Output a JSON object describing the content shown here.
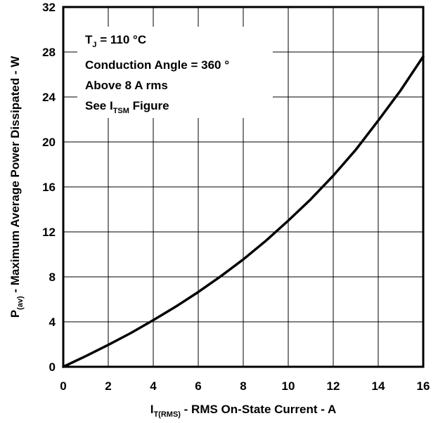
{
  "chart_data": {
    "type": "line",
    "xlabel": {
      "main": "I",
      "sub": "T(RMS)",
      "rest": " - RMS On-State Current - A"
    },
    "ylabel": {
      "main": "P",
      "sub": "(av)",
      "rest": " - Maximum Average Power Dissipated - W"
    },
    "xlim": [
      0,
      16
    ],
    "ylim": [
      0,
      32
    ],
    "xticks": [
      "0",
      "2",
      "4",
      "6",
      "8",
      "10",
      "12",
      "14",
      "16"
    ],
    "yticks": [
      "0",
      "4",
      "8",
      "12",
      "16",
      "20",
      "24",
      "28",
      "32"
    ],
    "grid": true,
    "annotations": {
      "line1": {
        "main": "T",
        "sub": "J",
        "rest": " = 110 °C"
      },
      "line2": "Conduction Angle = 360 °",
      "line3": "Above 8 A rms",
      "line4": {
        "pre": "See I",
        "sub": "TSM",
        "rest": " Figure"
      }
    },
    "series": [
      {
        "x": [
          0,
          1,
          2,
          3,
          4,
          5,
          6,
          7,
          8,
          9,
          10,
          11,
          12,
          13,
          14,
          15,
          16
        ],
        "values": [
          0,
          0.95,
          1.95,
          3.0,
          4.15,
          5.35,
          6.65,
          8.05,
          9.55,
          11.2,
          13.0,
          14.9,
          17.0,
          19.3,
          21.9,
          24.6,
          27.6
        ]
      }
    ]
  }
}
